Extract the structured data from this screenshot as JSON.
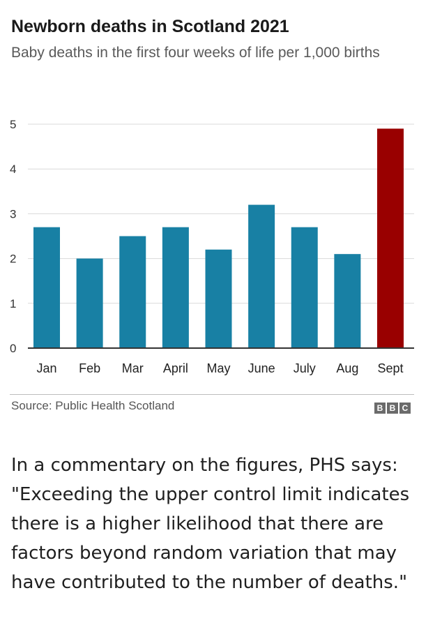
{
  "chart_data": {
    "type": "bar",
    "title": "Newborn deaths in Scotland 2021",
    "subtitle": "Baby deaths in the first four weeks of life per 1,000 births",
    "categories": [
      "Jan",
      "Feb",
      "Mar",
      "April",
      "May",
      "June",
      "July",
      "Aug",
      "Sept"
    ],
    "values": [
      2.7,
      2.0,
      2.5,
      2.7,
      2.2,
      3.2,
      2.7,
      2.1,
      4.9
    ],
    "yticks": [
      "0",
      "1",
      "2",
      "3",
      "4",
      "5"
    ],
    "ylim": [
      0,
      5
    ],
    "grid": true,
    "colors": {
      "bar": "#1880a4",
      "highlight": "#990000",
      "highlight_categories": [
        "Sept"
      ]
    }
  },
  "footer": {
    "source": "Source: Public Health Scotland",
    "logo_letters": [
      "B",
      "B",
      "C"
    ]
  },
  "commentary": "In a commentary on the figures, PHS says: \"Exceeding the upper control limit indicates there is a higher likelihood that there are factors beyond random variation that may have contributed to the number of deaths.\""
}
